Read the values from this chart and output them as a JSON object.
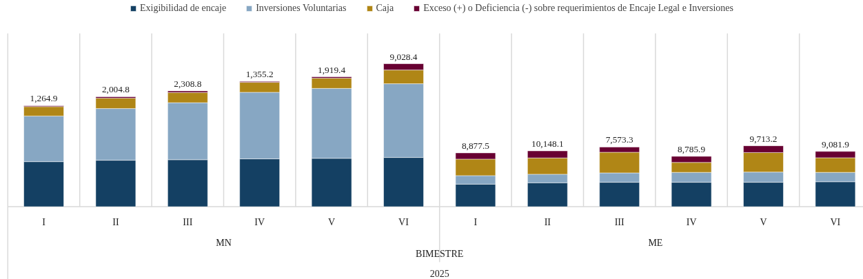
{
  "chart_data": {
    "type": "bar",
    "stacked": true,
    "legend": "top",
    "grid": "x",
    "xlabel": "BIMESTRE",
    "categories": [
      "I",
      "II",
      "III",
      "IV",
      "V",
      "VI",
      "I",
      "II",
      "III",
      "IV",
      "V",
      "VI"
    ],
    "annotations": [
      "MN",
      "ME",
      "2025"
    ],
    "series": [
      {
        "name": "Exigibilidad de encaje",
        "color": "#144063",
        "values": [
          64800,
          66800,
          67600,
          68800,
          69600,
          70800,
          32400,
          34400,
          35100,
          35100,
          35100,
          35900
        ]
      },
      {
        "name": "Inversiones Voluntarias",
        "color": "#87a7c3",
        "values": [
          65700,
          74400,
          82000,
          95800,
          100600,
          106100,
          12300,
          12300,
          13500,
          14300,
          14700,
          13500
        ]
      },
      {
        "name": "Caja",
        "color": "#b08616",
        "values": [
          13500,
          15000,
          14700,
          14300,
          14700,
          19800,
          23800,
          23400,
          29700,
          14300,
          28100,
          21000
        ]
      },
      {
        "name": "Exceso (+) o Deficiencia (-) sobre requerimientos de Encaje Legal e Inversiones",
        "color": "#680032",
        "values": [
          1264.9,
          2004.8,
          2308.8,
          1355.2,
          1919.4,
          9028.4,
          8877.5,
          10148.1,
          7573.3,
          8785.9,
          9713.2,
          9081.9
        ],
        "value_labels": [
          "1,264.9",
          "2,004.8",
          "2,308.8",
          "1,355.2",
          "1,919.4",
          "9,028.4",
          "8,877.5",
          "10,148.1",
          "7,573.3",
          "8,785.9",
          "9,713.2",
          "9,081.9"
        ]
      }
    ]
  }
}
